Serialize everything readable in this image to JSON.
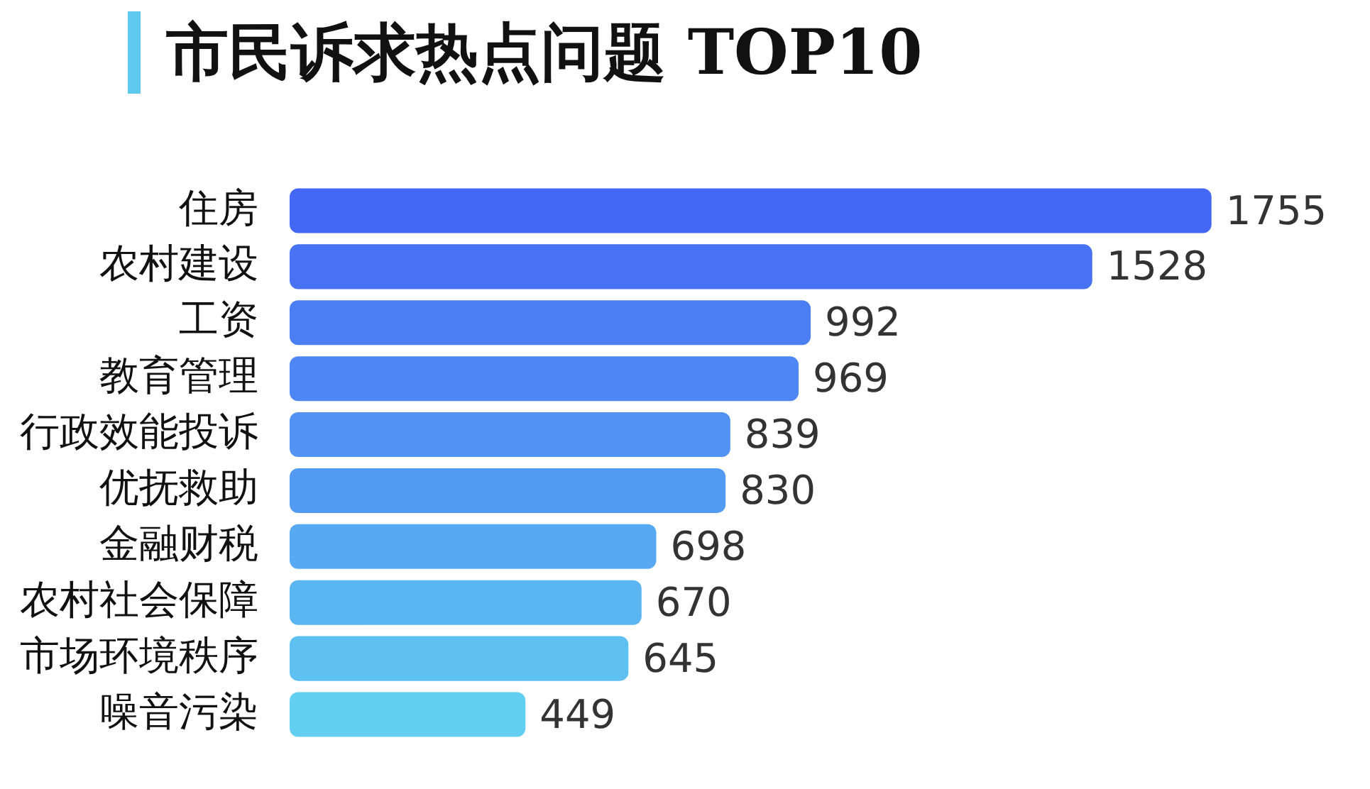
{
  "chart_data": {
    "type": "bar",
    "title": "市民诉求热点问题 TOP10",
    "orientation": "horizontal",
    "categories": [
      "住房",
      "农村建设",
      "工资",
      "教育管理",
      "行政效能投诉",
      "优抚救助",
      "金融财税",
      "农村社会保障",
      "市场环境秩序",
      "噪音污染"
    ],
    "values": [
      1755,
      1528,
      992,
      969,
      839,
      830,
      698,
      670,
      645,
      449
    ],
    "colors": [
      "#4468f5",
      "#4872f4",
      "#4b7ef3",
      "#4e87f3",
      "#5192f2",
      "#539bf2",
      "#57aaf2",
      "#5ab5f1",
      "#5dc0f1",
      "#62cff0"
    ],
    "data_labels": true,
    "legend": false
  }
}
